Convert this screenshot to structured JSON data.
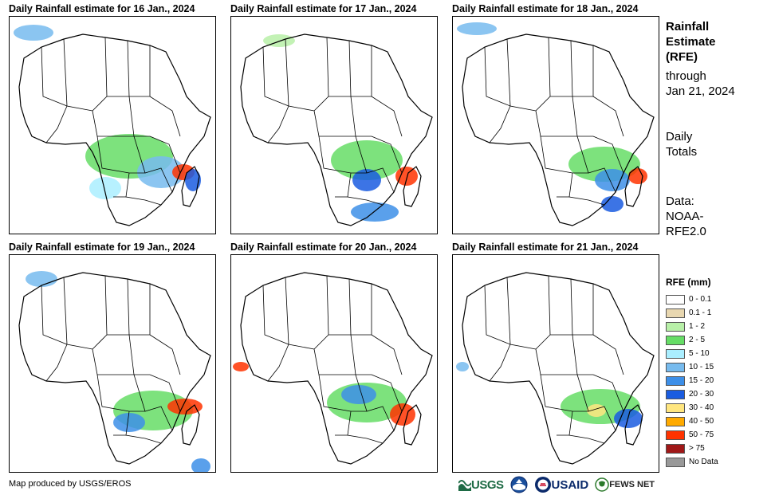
{
  "panels": [
    {
      "title": "Daily Rainfall estimate for 16 Jan., 2024",
      "day": 1
    },
    {
      "title": "Daily Rainfall estimate for 17 Jan., 2024",
      "day": 2
    },
    {
      "title": "Daily Rainfall estimate for 18 Jan., 2024",
      "day": 3
    },
    {
      "title": "Daily Rainfall estimate for 19 Jan., 2024",
      "day": 4
    },
    {
      "title": "Daily Rainfall estimate for 20 Jan., 2024",
      "day": 5
    },
    {
      "title": "Daily Rainfall estimate for 21 Jan., 2024",
      "day": 6
    }
  ],
  "side": {
    "title_line1": "Rainfall",
    "title_line2": "Estimate",
    "title_line3": "(RFE)",
    "through_line1": "through",
    "through_line2": "Jan 21, 2024",
    "daily_line1": "Daily",
    "daily_line2": "Totals",
    "data_line1": "Data:",
    "data_line2": "NOAA-",
    "data_line3": "RFE2.0"
  },
  "legend": {
    "title": "RFE (mm)",
    "items": [
      {
        "label": "0 - 0.1",
        "color": "#ffffff"
      },
      {
        "label": "0.1 - 1",
        "color": "#e8d7b0"
      },
      {
        "label": "1 - 2",
        "color": "#b8f0a8"
      },
      {
        "label": "2 - 5",
        "color": "#66dd66"
      },
      {
        "label": "5 - 10",
        "color": "#aaeeff"
      },
      {
        "label": "10 - 15",
        "color": "#77bbee"
      },
      {
        "label": "15 - 20",
        "color": "#3d8fe8"
      },
      {
        "label": "20 - 30",
        "color": "#1a5ce0"
      },
      {
        "label": "30 - 40",
        "color": "#ffe680"
      },
      {
        "label": "40 - 50",
        "color": "#ffaa00"
      },
      {
        "label": "50 - 75",
        "color": "#ff3300"
      },
      {
        "label": "> 75",
        "color": "#a01818"
      },
      {
        "label": "No Data",
        "color": "#999999"
      }
    ]
  },
  "credit": "Map produced by USGS/EROS",
  "logos": {
    "usgs": "USGS",
    "usaid": "USAID",
    "fews": "FEWS NET"
  }
}
